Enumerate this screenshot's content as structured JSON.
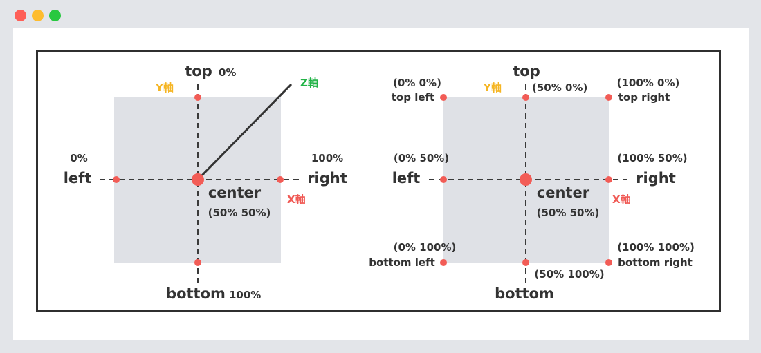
{
  "window": {
    "buttons": [
      "close",
      "minimize",
      "maximize"
    ],
    "colors": {
      "close": "#fe5f57",
      "minimize": "#febc2e",
      "maximize": "#28c840"
    }
  },
  "colors": {
    "box": "#dfe1e6",
    "point": "#f25c56",
    "axis_y": "#f5b523",
    "axis_x": "#f05a55",
    "axis_z": "#22b347",
    "line": "#333333"
  },
  "left_diagram": {
    "top": "top",
    "top_value": "0%",
    "bottom": "bottom",
    "bottom_value": "100%",
    "left": "left",
    "left_value": "0%",
    "right": "right",
    "right_value": "100%",
    "center": "center",
    "center_value": "(50% 50%)",
    "y_axis": "Y軸",
    "x_axis": "X軸",
    "z_axis": "Z軸"
  },
  "right_diagram": {
    "top": "top",
    "bottom": "bottom",
    "left": "left",
    "right": "right",
    "center": "center",
    "center_value": "(50% 50%)",
    "y_axis": "Y軸",
    "x_axis": "X軸",
    "top_left_value": "(0% 0%)",
    "top_left": "top left",
    "top_center_value": "(50% 0%)",
    "top_right_value": "(100% 0%)",
    "top_right": "top right",
    "left_center_value": "(0% 50%)",
    "right_center_value": "(100% 50%)",
    "bottom_left_value": "(0% 100%)",
    "bottom_left": "bottom left",
    "bottom_center_value": "(50% 100%)",
    "bottom_right_value": "(100% 100%)",
    "bottom_right": "bottom right"
  }
}
